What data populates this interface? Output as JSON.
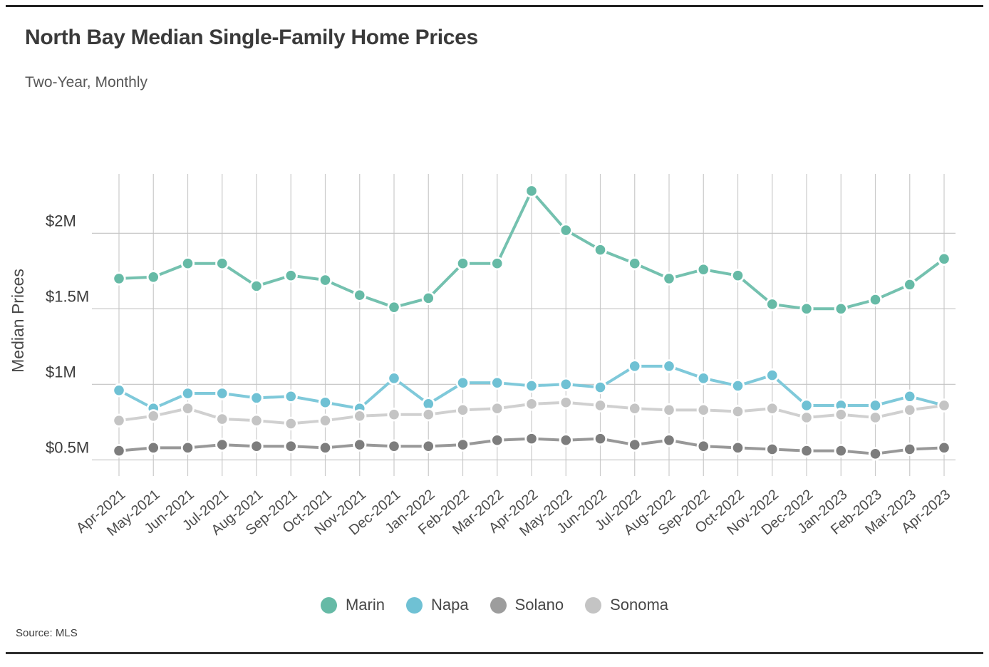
{
  "page": {
    "top_rule": true,
    "bottom_rule": true
  },
  "chart_data": {
    "type": "line",
    "title": "North Bay Median Single-Family Home Prices",
    "subtitle": "Two-Year, Monthly",
    "ylabel": "Median Prices",
    "xlabel": "",
    "source": "Source: MLS",
    "units": "millions USD",
    "grid": true,
    "legend_position": "bottom",
    "ylim": [
      0.4,
      2.35
    ],
    "yticks": [
      {
        "label": "$0.5M",
        "value": 0.5
      },
      {
        "label": "$1M",
        "value": 1.0
      },
      {
        "label": "$1.5M",
        "value": 1.5
      },
      {
        "label": "$2M",
        "value": 2.0
      }
    ],
    "x_categories": [
      "Apr-2021",
      "May-2021",
      "Jun-2021",
      "Jul-2021",
      "Aug-2021",
      "Sep-2021",
      "Oct-2021",
      "Nov-2021",
      "Dec-2021",
      "Jan-2022",
      "Feb-2022",
      "Mar-2022",
      "Apr-2022",
      "May-2022",
      "Jun-2022",
      "Jul-2022",
      "Aug-2022",
      "Sep-2022",
      "Oct-2022",
      "Nov-2022",
      "Dec-2022",
      "Jan-2023",
      "Feb-2023",
      "Mar-2023",
      "Apr-2023"
    ],
    "series": [
      {
        "name": "Marin",
        "color": "#66BAA6",
        "line_color": "#74C1AF",
        "values": [
          1.7,
          1.71,
          1.8,
          1.8,
          1.65,
          1.72,
          1.69,
          1.59,
          1.51,
          1.57,
          1.8,
          1.8,
          2.28,
          2.02,
          1.89,
          1.8,
          1.7,
          1.76,
          1.72,
          1.53,
          1.5,
          1.5,
          1.56,
          1.66,
          1.83
        ]
      },
      {
        "name": "Napa",
        "color": "#6FC1D4",
        "line_color": "#7FC9DA",
        "values": [
          0.96,
          0.84,
          0.94,
          0.94,
          0.91,
          0.92,
          0.88,
          0.84,
          1.04,
          0.87,
          1.01,
          1.01,
          0.99,
          1.0,
          0.98,
          1.12,
          1.12,
          1.04,
          0.99,
          1.06,
          0.86,
          0.86,
          0.86,
          0.92,
          0.86
        ]
      },
      {
        "name": "Solano",
        "color": "#7D7D7D",
        "line_color": "#989898",
        "legend_color": "#9D9D9D",
        "values": [
          0.56,
          0.58,
          0.58,
          0.6,
          0.59,
          0.59,
          0.58,
          0.6,
          0.59,
          0.59,
          0.6,
          0.63,
          0.64,
          0.63,
          0.64,
          0.6,
          0.63,
          0.59,
          0.58,
          0.57,
          0.56,
          0.56,
          0.54,
          0.57,
          0.58
        ]
      },
      {
        "name": "Sonoma",
        "color": "#C4C4C4",
        "line_color": "#D0D0D0",
        "values": [
          0.76,
          0.79,
          0.84,
          0.77,
          0.76,
          0.74,
          0.76,
          0.79,
          0.8,
          0.8,
          0.83,
          0.84,
          0.87,
          0.88,
          0.86,
          0.84,
          0.83,
          0.83,
          0.82,
          0.84,
          0.78,
          0.8,
          0.78,
          0.83,
          0.86
        ]
      }
    ]
  }
}
